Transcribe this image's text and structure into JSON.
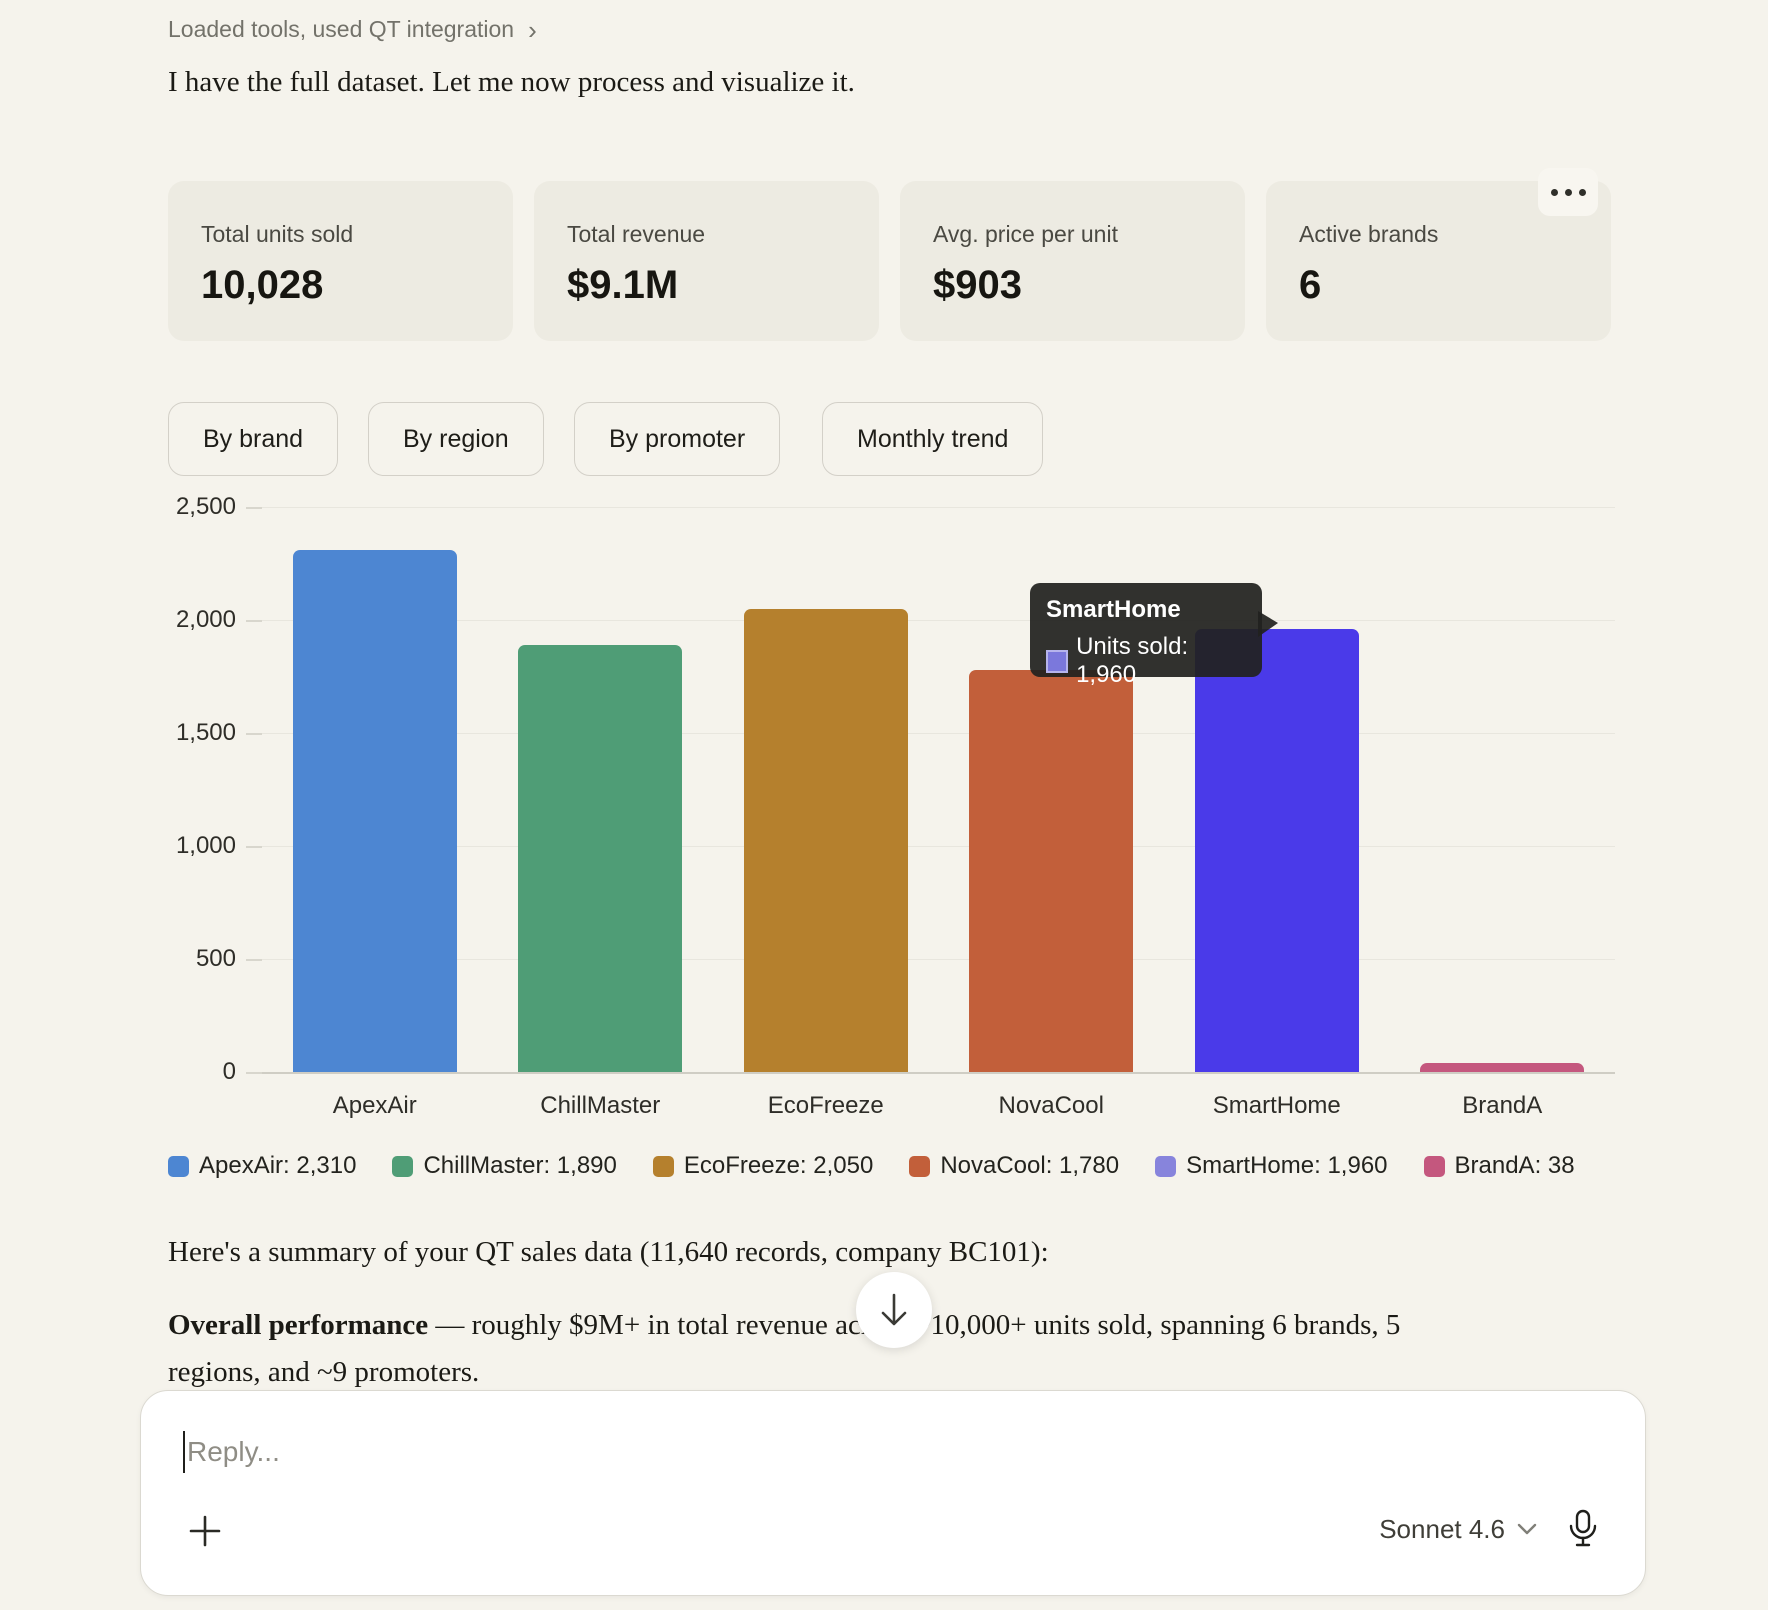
{
  "header": {
    "tool_note": "Loaded tools, used QT integration",
    "chevron_right": "›"
  },
  "intro_text": "I have the full dataset. Let me now process and visualize it.",
  "stats": [
    {
      "label": "Total units sold",
      "value": "10,028"
    },
    {
      "label": "Total revenue",
      "value": "$9.1M"
    },
    {
      "label": "Avg. price per unit",
      "value": "$903"
    },
    {
      "label": "Active brands",
      "value": "6"
    }
  ],
  "tabs": [
    {
      "label": "By brand"
    },
    {
      "label": "By region"
    },
    {
      "label": "By promoter"
    },
    {
      "label": "Monthly trend"
    }
  ],
  "chart_data": {
    "type": "bar",
    "title": "",
    "xlabel": "",
    "ylabel": "",
    "categories": [
      "ApexAir",
      "ChillMaster",
      "EcoFreeze",
      "NovaCool",
      "SmartHome",
      "BrandA"
    ],
    "values": [
      2310,
      1890,
      2050,
      1780,
      1960,
      38
    ],
    "bar_colors": [
      "#4d86d2",
      "#4f9d76",
      "#b5802d",
      "#c25f3a",
      "#4a3ae9",
      "#c4577e"
    ],
    "ylim": [
      0,
      2500
    ],
    "yticks": [
      "0",
      "500",
      "1,000",
      "1,500",
      "2,000",
      "2,500"
    ],
    "grid": true,
    "legend_position": "bottom",
    "legend": [
      {
        "label": "ApexAir: 2,310",
        "color": "#4d86d2"
      },
      {
        "label": "ChillMaster: 1,890",
        "color": "#4f9d76"
      },
      {
        "label": "EcoFreeze: 2,050",
        "color": "#b5802d"
      },
      {
        "label": "NovaCool: 1,780",
        "color": "#c25f3a"
      },
      {
        "label": "SmartHome: 1,960",
        "color": "#8784dc"
      },
      {
        "label": "BrandA: 38",
        "color": "#c4577e"
      }
    ]
  },
  "tooltip": {
    "title": "SmartHome",
    "line": "Units sold: 1,960",
    "swatch_color": "#7b78dc"
  },
  "summary": {
    "line1": "Here's a summary of your QT sales data (11,640 records, company BC101):",
    "bold": "Overall performance",
    "rest": " — roughly $9M+ in total revenue across ~10,000+ units sold, spanning 6 brands, 5 regions, and ~9 promoters."
  },
  "composer": {
    "placeholder": "Reply...",
    "model": "Sonnet 4.6"
  }
}
